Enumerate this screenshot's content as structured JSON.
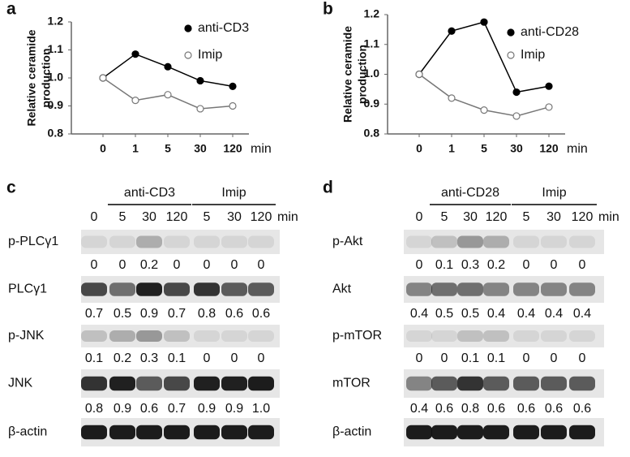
{
  "chart_data": [
    {
      "type": "line",
      "label": "a",
      "ylabel": [
        "Relative ceramide",
        "production"
      ],
      "xlabel": "min",
      "categories": [
        "0",
        "1",
        "5",
        "30",
        "120"
      ],
      "series": [
        {
          "name": "anti-CD3",
          "color": "#000000",
          "marker_fill": "#000000",
          "values": [
            1.0,
            1.085,
            1.04,
            0.99,
            0.97
          ]
        },
        {
          "name": "Imip",
          "color": "#777777",
          "marker_fill": "#ffffff",
          "values": [
            1.0,
            0.92,
            0.94,
            0.89,
            0.9
          ]
        }
      ],
      "ylim": [
        0.8,
        1.2
      ],
      "yticks": [
        0.8,
        0.9,
        {
          "value": 1,
          "label": "1.0"
        },
        1.1,
        1.2
      ],
      "grid": false
    },
    {
      "type": "line",
      "label": "b",
      "ylabel": [
        "Relative ceramide",
        "production"
      ],
      "xlabel": "min",
      "categories": [
        "0",
        "1",
        "5",
        "30",
        "120"
      ],
      "series": [
        {
          "name": "anti-CD28",
          "color": "#000000",
          "marker_fill": "#000000",
          "values": [
            1.0,
            1.145,
            1.175,
            0.94,
            0.96
          ]
        },
        {
          "name": "Imip",
          "color": "#777777",
          "marker_fill": "#ffffff",
          "values": [
            1.0,
            0.92,
            0.88,
            0.86,
            0.89
          ]
        }
      ],
      "ylim": [
        0.8,
        1.2
      ],
      "yticks": [
        0.8,
        0.9,
        {
          "value": 1,
          "label": "1.0"
        },
        1.1,
        1.2
      ],
      "grid": false
    }
  ],
  "blots": [
    {
      "label": "c",
      "groups": [
        "anti-CD3",
        "Imip"
      ],
      "lanes": [
        "0",
        "5",
        "30",
        "120",
        "5",
        "30",
        "120"
      ],
      "unit": "min",
      "rows": [
        {
          "name": "p-PLCγ1",
          "values": [
            "0",
            "0",
            "0.2",
            "0",
            "0",
            "0",
            "0"
          ]
        },
        {
          "name": "PLCγ1",
          "values": [
            "0.7",
            "0.5",
            "0.9",
            "0.7",
            "0.8",
            "0.6",
            "0.6"
          ]
        },
        {
          "name": "p-JNK",
          "values": [
            "0.1",
            "0.2",
            "0.3",
            "0.1",
            "0",
            "0",
            "0"
          ]
        },
        {
          "name": "JNK",
          "values": [
            "0.8",
            "0.9",
            "0.6",
            "0.7",
            "0.9",
            "0.9",
            "1.0"
          ]
        },
        {
          "name": "β-actin"
        }
      ]
    },
    {
      "label": "d",
      "groups": [
        "anti-CD28",
        "Imip"
      ],
      "lanes": [
        "0",
        "5",
        "30",
        "120",
        "5",
        "30",
        "120"
      ],
      "unit": "min",
      "rows": [
        {
          "name": "p-Akt",
          "values": [
            "0",
            "0.1",
            "0.3",
            "0.2",
            "0",
            "0",
            "0"
          ]
        },
        {
          "name": "Akt",
          "values": [
            "0.4",
            "0.5",
            "0.5",
            "0.4",
            "0.4",
            "0.4",
            "0.4"
          ]
        },
        {
          "name": "p-mTOR",
          "values": [
            "0",
            "0",
            "0.1",
            "0.1",
            "0",
            "0",
            "0"
          ]
        },
        {
          "name": "mTOR",
          "values": [
            "0.4",
            "0.6",
            "0.8",
            "0.6",
            "0.6",
            "0.6",
            "0.6"
          ]
        },
        {
          "name": "β-actin"
        }
      ]
    }
  ]
}
